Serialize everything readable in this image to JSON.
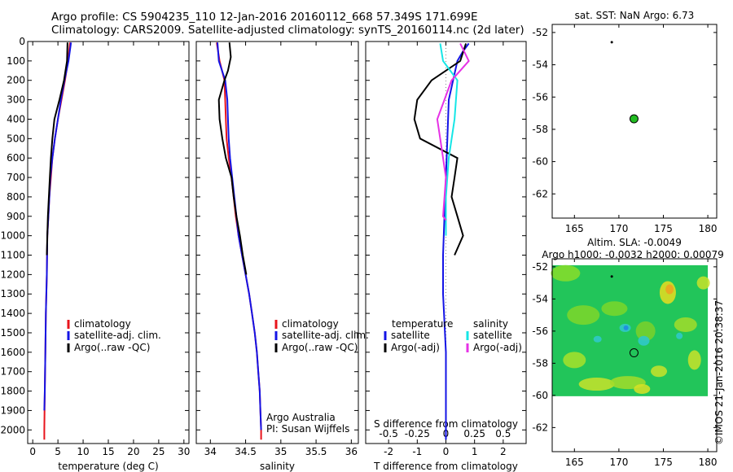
{
  "header": {
    "line1": "Argo profile: CS 5904235_110 12-Jan-2016 20160112_668 57.349S 171.699E",
    "line2": "Climatology: CARS2009. Satellite-adjusted climatology: synTS_20160114.nc (2d later)"
  },
  "colors": {
    "climatology": "#e8141c",
    "satellite": "#1414e6",
    "argo": "#000000",
    "sal_satellite": "#16e6e6",
    "sal_argo": "#e632e6",
    "float_marker": "#22bb22"
  },
  "legend": {
    "climatology": "climatology",
    "satellite_adj": "satellite-adj. clim.",
    "argo_raw": "Argo(..raw -QC)",
    "temperature": "temperature",
    "salinity": "salinity",
    "satellite": "satellite",
    "argo_adj": "Argo(-adj)"
  },
  "notes": {
    "argo_australia": "Argo Australia",
    "pi": "PI: Susan Wijffels",
    "s_diff_title": "S difference from climatology",
    "imos_stamp": "©IMOS 21-Jan-2016 20:38:37"
  },
  "chart_data": [
    {
      "id": "temperature",
      "type": "line",
      "xlabel": "temperature (deg C)",
      "ylabel": "",
      "xlim": [
        -1,
        31
      ],
      "ylim": [
        2070,
        0
      ],
      "xticks": [
        0,
        5,
        10,
        15,
        20,
        25,
        30
      ],
      "yticks": [
        0,
        100,
        200,
        300,
        400,
        500,
        600,
        700,
        800,
        900,
        1000,
        1100,
        1200,
        1300,
        1400,
        1500,
        1600,
        1700,
        1800,
        1900,
        2000
      ],
      "series": [
        {
          "name": "climatology",
          "color": "#e8141c",
          "points": [
            [
              7.4,
              5
            ],
            [
              7.0,
              100
            ],
            [
              6.4,
              200
            ],
            [
              5.7,
              300
            ],
            [
              5.0,
              400
            ],
            [
              4.4,
              500
            ],
            [
              3.9,
              600
            ],
            [
              3.6,
              700
            ],
            [
              3.3,
              800
            ],
            [
              3.1,
              900
            ],
            [
              2.9,
              1000
            ],
            [
              2.8,
              1200
            ],
            [
              2.6,
              1400
            ],
            [
              2.5,
              1600
            ],
            [
              2.4,
              1800
            ],
            [
              2.3,
              2000
            ],
            [
              2.3,
              2050
            ]
          ]
        },
        {
          "name": "satellite-adj. clim.",
          "color": "#1414e6",
          "points": [
            [
              7.6,
              5
            ],
            [
              7.1,
              100
            ],
            [
              6.3,
              200
            ],
            [
              5.6,
              300
            ],
            [
              5.0,
              400
            ],
            [
              4.4,
              500
            ],
            [
              3.9,
              600
            ],
            [
              3.5,
              700
            ],
            [
              3.3,
              800
            ],
            [
              3.1,
              900
            ],
            [
              2.9,
              1000
            ],
            [
              2.8,
              1200
            ],
            [
              2.6,
              1400
            ],
            [
              2.5,
              1600
            ],
            [
              2.4,
              1800
            ],
            [
              2.3,
              1900
            ]
          ]
        },
        {
          "name": "Argo(..raw -QC)",
          "color": "#000000",
          "points": [
            [
              6.9,
              5
            ],
            [
              6.8,
              100
            ],
            [
              6.2,
              200
            ],
            [
              5.3,
              300
            ],
            [
              4.3,
              400
            ],
            [
              3.9,
              500
            ],
            [
              3.6,
              600
            ],
            [
              3.4,
              700
            ],
            [
              3.2,
              800
            ],
            [
              3.0,
              900
            ],
            [
              2.9,
              1000
            ],
            [
              2.8,
              1100
            ]
          ]
        }
      ]
    },
    {
      "id": "salinity",
      "type": "line",
      "xlabel": "salinity",
      "ylabel": "",
      "xlim": [
        33.8,
        36.1
      ],
      "ylim": [
        2070,
        0
      ],
      "xticks": [
        34,
        34.5,
        35,
        35.5,
        36
      ],
      "series": [
        {
          "name": "climatology",
          "color": "#e8141c",
          "points": [
            [
              34.09,
              5
            ],
            [
              34.13,
              100
            ],
            [
              34.2,
              200
            ],
            [
              34.21,
              300
            ],
            [
              34.22,
              400
            ],
            [
              34.23,
              500
            ],
            [
              34.26,
              600
            ],
            [
              34.3,
              700
            ],
            [
              34.33,
              800
            ],
            [
              34.36,
              900
            ],
            [
              34.4,
              1000
            ],
            [
              34.45,
              1100
            ],
            [
              34.5,
              1200
            ],
            [
              34.55,
              1300
            ],
            [
              34.59,
              1400
            ],
            [
              34.63,
              1500
            ],
            [
              34.66,
              1600
            ],
            [
              34.68,
              1700
            ],
            [
              34.7,
              1800
            ],
            [
              34.71,
              1900
            ],
            [
              34.72,
              2000
            ],
            [
              34.72,
              2050
            ]
          ]
        },
        {
          "name": "satellite-adj. clim.",
          "color": "#1414e6",
          "points": [
            [
              34.1,
              5
            ],
            [
              34.12,
              100
            ],
            [
              34.21,
              200
            ],
            [
              34.24,
              300
            ],
            [
              34.25,
              400
            ],
            [
              34.26,
              500
            ],
            [
              34.28,
              600
            ],
            [
              34.31,
              700
            ],
            [
              34.34,
              800
            ],
            [
              34.37,
              900
            ],
            [
              34.4,
              1000
            ],
            [
              34.45,
              1100
            ],
            [
              34.5,
              1200
            ],
            [
              34.55,
              1300
            ],
            [
              34.59,
              1400
            ],
            [
              34.63,
              1500
            ],
            [
              34.66,
              1600
            ],
            [
              34.68,
              1700
            ],
            [
              34.7,
              1800
            ],
            [
              34.71,
              1900
            ],
            [
              34.72,
              2000
            ]
          ]
        },
        {
          "name": "Argo(..raw -QC)",
          "color": "#000000",
          "points": [
            [
              34.27,
              5
            ],
            [
              34.29,
              80
            ],
            [
              34.25,
              150
            ],
            [
              34.2,
              200
            ],
            [
              34.12,
              300
            ],
            [
              34.13,
              400
            ],
            [
              34.17,
              500
            ],
            [
              34.22,
              600
            ],
            [
              34.3,
              700
            ],
            [
              34.33,
              800
            ],
            [
              34.37,
              900
            ],
            [
              34.42,
              1000
            ],
            [
              34.46,
              1100
            ],
            [
              34.51,
              1200
            ]
          ]
        }
      ]
    },
    {
      "id": "difference",
      "type": "line",
      "xlabel": "T difference from climatology",
      "title": "S difference from climatology",
      "xlim": [
        -2.8,
        2.8
      ],
      "ylim": [
        2070,
        0
      ],
      "xticks": [
        -2,
        -1,
        0,
        1,
        2
      ],
      "top_xticks": [
        "-0.5",
        "-0.25",
        "0",
        "0.25",
        "0.5"
      ],
      "series": [
        {
          "name": "temperature satellite",
          "color": "#1414e6",
          "points": [
            [
              0.8,
              10
            ],
            [
              0.6,
              50
            ],
            [
              0.4,
              100
            ],
            [
              0.1,
              300
            ],
            [
              0.05,
              500
            ],
            [
              0,
              700
            ],
            [
              -0.05,
              900
            ],
            [
              -0.1,
              1100
            ],
            [
              -0.1,
              1300
            ],
            [
              0,
              1600
            ],
            [
              0,
              2000
            ],
            [
              0,
              2050
            ]
          ]
        },
        {
          "name": "temperature Argo(-adj)",
          "color": "#000000",
          "points": [
            [
              0.7,
              10
            ],
            [
              0.5,
              100
            ],
            [
              -0.5,
              200
            ],
            [
              -1.0,
              300
            ],
            [
              -1.1,
              400
            ],
            [
              -0.9,
              500
            ],
            [
              0.4,
              600
            ],
            [
              0.3,
              700
            ],
            [
              0.2,
              800
            ],
            [
              0.4,
              900
            ],
            [
              0.6,
              1000
            ],
            [
              0.3,
              1100
            ]
          ]
        },
        {
          "name": "salinity satellite",
          "color": "#16e6e6",
          "points": [
            [
              -0.2,
              10
            ],
            [
              -0.1,
              100
            ],
            [
              0.4,
              200
            ],
            [
              0.3,
              400
            ],
            [
              0.1,
              600
            ],
            [
              0,
              800
            ],
            [
              0,
              1000
            ]
          ]
        },
        {
          "name": "salinity Argo(-adj)",
          "color": "#e632e6",
          "points": [
            [
              0.5,
              10
            ],
            [
              0.8,
              100
            ],
            [
              0.2,
              200
            ],
            [
              -0.3,
              400
            ],
            [
              -0.2,
              500
            ],
            [
              0,
              700
            ],
            [
              -0.1,
              900
            ],
            [
              0,
              920
            ]
          ]
        }
      ]
    },
    {
      "id": "sst_map",
      "type": "scatter",
      "title": "sat. SST: NaN Argo: 6.73",
      "xlim": [
        162.5,
        181
      ],
      "ylim": [
        -63.5,
        -51.5
      ],
      "xticks": [
        165,
        170,
        175,
        180
      ],
      "yticks": [
        -52,
        -54,
        -56,
        -58,
        -60,
        -62
      ],
      "points": [
        {
          "x": 169.2,
          "y": -52.6
        },
        {
          "x": 171.7,
          "y": -57.35
        }
      ]
    },
    {
      "id": "sla_map",
      "type": "heatmap",
      "title": "Altim. SLA: -0.0049",
      "subtitle": "Argo h1000: -0.0032 h2000: 0.00079",
      "xlim": [
        162.5,
        181
      ],
      "ylim": [
        -63.5,
        -51.5
      ],
      "xticks": [
        165,
        170,
        175,
        180
      ],
      "yticks": [
        -52,
        -54,
        -56,
        -58,
        -60,
        -62
      ],
      "points": [
        {
          "x": 169.2,
          "y": -52.6
        },
        {
          "x": 171.7,
          "y": -57.35
        }
      ]
    }
  ]
}
